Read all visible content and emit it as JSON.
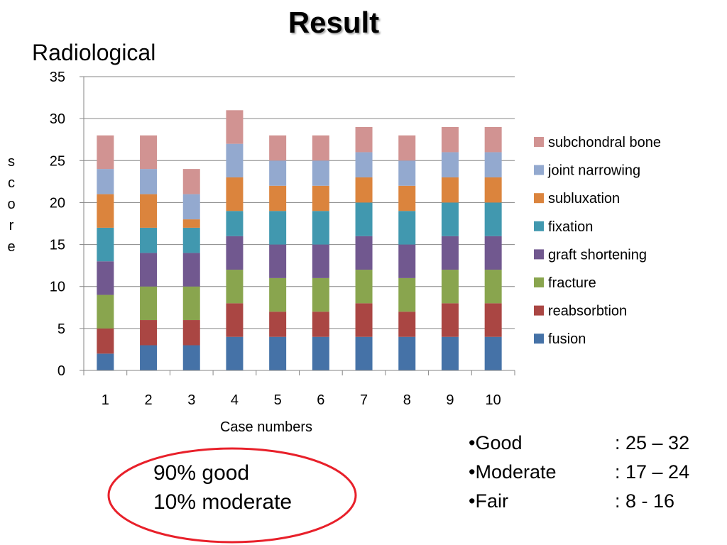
{
  "slide": {
    "title": "Result",
    "subtitle": "Radiological"
  },
  "chart_data": {
    "type": "bar",
    "stacked": true,
    "categories": [
      "1",
      "2",
      "3",
      "4",
      "5",
      "6",
      "7",
      "8",
      "9",
      "10"
    ],
    "series": [
      {
        "name": "fusion",
        "color": "#4572A7",
        "values": [
          2,
          3,
          3,
          4,
          4,
          4,
          4,
          4,
          4,
          4
        ]
      },
      {
        "name": "reabsorbtion",
        "color": "#AA4643",
        "values": [
          3,
          3,
          3,
          4,
          3,
          3,
          4,
          3,
          4,
          4
        ]
      },
      {
        "name": "fracture",
        "color": "#89A54E",
        "values": [
          4,
          4,
          4,
          4,
          4,
          4,
          4,
          4,
          4,
          4
        ]
      },
      {
        "name": "graft shortening",
        "color": "#71588F",
        "values": [
          4,
          4,
          4,
          4,
          4,
          4,
          4,
          4,
          4,
          4
        ]
      },
      {
        "name": "fixation",
        "color": "#4198AF",
        "values": [
          4,
          3,
          3,
          3,
          4,
          4,
          4,
          4,
          4,
          4
        ]
      },
      {
        "name": "subluxation",
        "color": "#DB843D",
        "values": [
          4,
          4,
          1,
          4,
          3,
          3,
          3,
          3,
          3,
          3
        ]
      },
      {
        "name": "joint narrowing",
        "color": "#93A9CF",
        "values": [
          3,
          3,
          3,
          4,
          3,
          3,
          3,
          3,
          3,
          3
        ]
      },
      {
        "name": "subchondral bone",
        "color": "#D19392",
        "values": [
          4,
          4,
          3,
          4,
          3,
          3,
          3,
          3,
          3,
          3
        ]
      }
    ],
    "xlabel": "Case numbers",
    "ylabel": "score",
    "ylim": [
      0,
      35
    ],
    "y_ticks": [
      0,
      5,
      10,
      15,
      20,
      25,
      30,
      35
    ],
    "grid": true,
    "legend_position": "right"
  },
  "summary": {
    "line1": "90% good",
    "line2": "10% moderate",
    "outline_color": "#E8202A"
  },
  "grading": [
    {
      "label": "•Good",
      "range": ": 25 – 32"
    },
    {
      "label": "•Moderate",
      "range": ": 17 – 24"
    },
    {
      "label": "•Fair",
      "range": ": 8 - 16"
    }
  ]
}
